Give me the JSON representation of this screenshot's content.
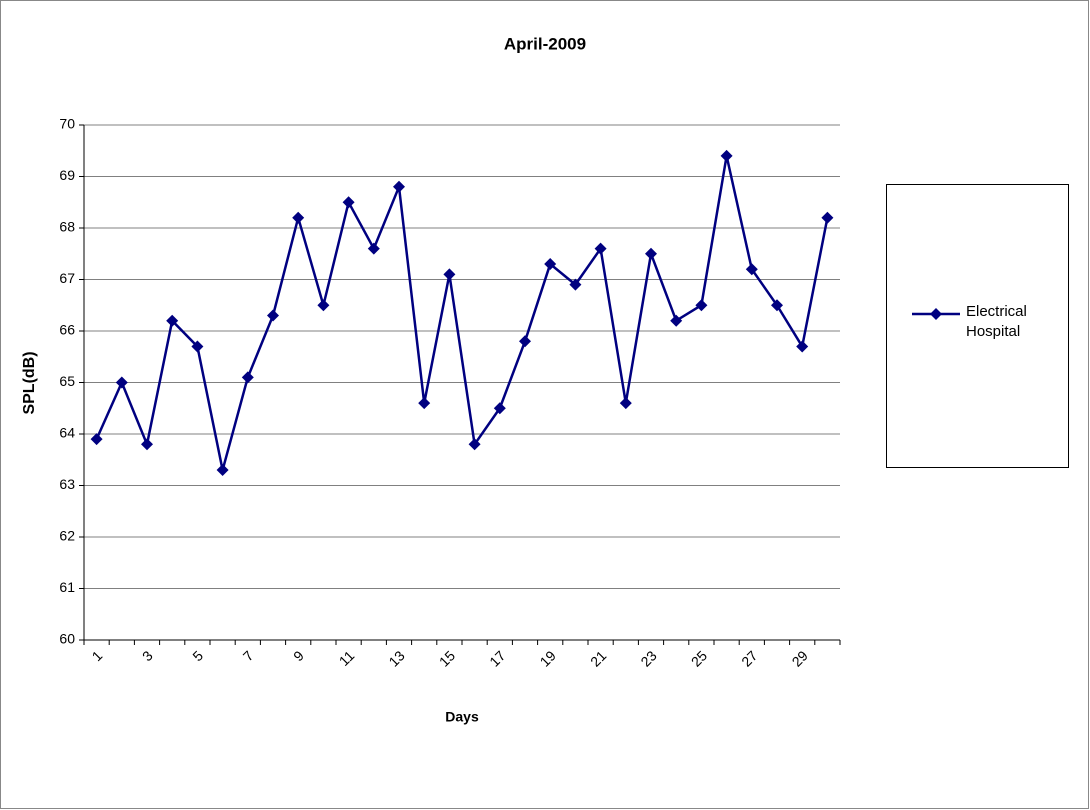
{
  "chart_data": {
    "type": "line",
    "title": "April-2009",
    "x_label": "Days",
    "y_label": "SPL(dB)",
    "categories": [
      "1",
      null,
      "3",
      null,
      "5",
      null,
      "7",
      null,
      "9",
      null,
      "11",
      null,
      "13",
      null,
      "15",
      null,
      "17",
      null,
      "19",
      null,
      "21",
      null,
      "23",
      null,
      "25",
      null,
      "27",
      null,
      "29",
      null
    ],
    "series": [
      {
        "name": "Electrical Hospital",
        "color": "#000080",
        "values": [
          63.9,
          65.0,
          63.8,
          66.2,
          65.7,
          63.3,
          65.1,
          66.3,
          68.2,
          66.5,
          68.5,
          67.6,
          68.8,
          64.6,
          67.1,
          63.8,
          64.5,
          65.8,
          67.3,
          66.9,
          67.6,
          64.6,
          67.5,
          66.2,
          66.5,
          69.4,
          67.2,
          66.5,
          65.7,
          68.2
        ]
      }
    ],
    "ylim": [
      60,
      70
    ],
    "yticks": [
      60,
      61,
      62,
      63,
      64,
      65,
      66,
      67,
      68,
      69,
      70
    ],
    "grid": true,
    "legend": "right"
  }
}
